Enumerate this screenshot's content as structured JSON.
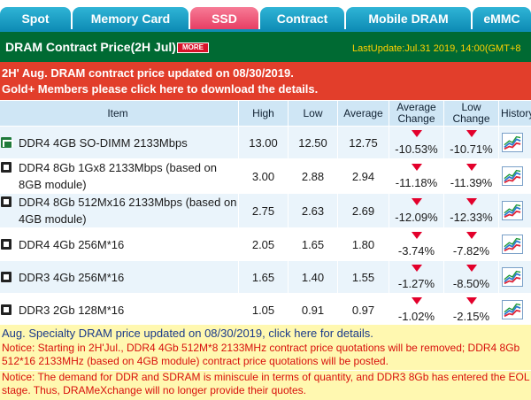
{
  "tabs": [
    {
      "label": "Spot"
    },
    {
      "label": "Memory Card"
    },
    {
      "label": "SSD"
    },
    {
      "label": "Contract"
    },
    {
      "label": "Mobile DRAM"
    },
    {
      "label": "eMMC"
    }
  ],
  "active_tab": "SSD",
  "colors": {
    "tab": "#1aa0c8",
    "tab_active": "#e63c62",
    "header": "#006a33",
    "banner": "#e23e2b",
    "note_bg": "#fff8b0",
    "down": "#e3002b"
  },
  "header": {
    "title": "DRAM Contract Price(2H Jul)",
    "more_label": "MORE",
    "last_update": "LastUpdate:Jul.31 2019, 14:00(GMT+8"
  },
  "banner": {
    "line1": "2H' Aug. DRAM contract price updated on 08/30/2019.",
    "line2": "Gold+ Members please click here to download the details."
  },
  "table": {
    "columns": [
      "Item",
      "High",
      "Low",
      "Average",
      "Average Change",
      "Low Change",
      "History"
    ],
    "rows": [
      {
        "item": "DDR4 4GB SO-DIMM 2133Mbps",
        "icon": "memory-module-icon",
        "high": "13.00",
        "low": "12.50",
        "average": "12.75",
        "avg_change": "-10.53%",
        "low_change": "-10.71%"
      },
      {
        "item": "DDR4 8Gb 1Gx8 2133Mbps (based on 8GB module)",
        "icon": "chip-icon",
        "high": "3.00",
        "low": "2.88",
        "average": "2.94",
        "avg_change": "-11.18%",
        "low_change": "-11.39%"
      },
      {
        "item": "DDR4 8Gb 512Mx16 2133Mbps (based on 4GB module)",
        "icon": "chip-icon",
        "high": "2.75",
        "low": "2.63",
        "average": "2.69",
        "avg_change": "-12.09%",
        "low_change": "-12.33%"
      },
      {
        "item": "DDR4 4Gb 256M*16",
        "icon": "chip-icon",
        "high": "2.05",
        "low": "1.65",
        "average": "1.80",
        "avg_change": "-3.74%",
        "low_change": "-7.82%"
      },
      {
        "item": "DDR3 4Gb 256M*16",
        "icon": "chip-icon",
        "high": "1.65",
        "low": "1.40",
        "average": "1.55",
        "avg_change": "-1.27%",
        "low_change": "-8.50%"
      },
      {
        "item": "DDR3 2Gb 128M*16",
        "icon": "chip-icon",
        "high": "1.05",
        "low": "0.91",
        "average": "0.97",
        "avg_change": "-1.02%",
        "low_change": "-2.15%"
      }
    ]
  },
  "notes": {
    "specialty": "Aug. Specialty DRAM price updated on 08/30/2019, click here for details.",
    "notice1": "Notice: Starting in 2H'Jul., DDR4 4Gb 512M*8 2133MHz contract price quotations will be removed; DDR4 8Gb 512*16 2133MHz (based on 4GB module) contract price quotations will be posted.",
    "notice2": "Notice: The demand for DDR and SDRAM is miniscule in terms of quantity, and DDR3 8Gb has entered the EOL stage. Thus, DRAMeXchange will no longer provide their quotes."
  }
}
